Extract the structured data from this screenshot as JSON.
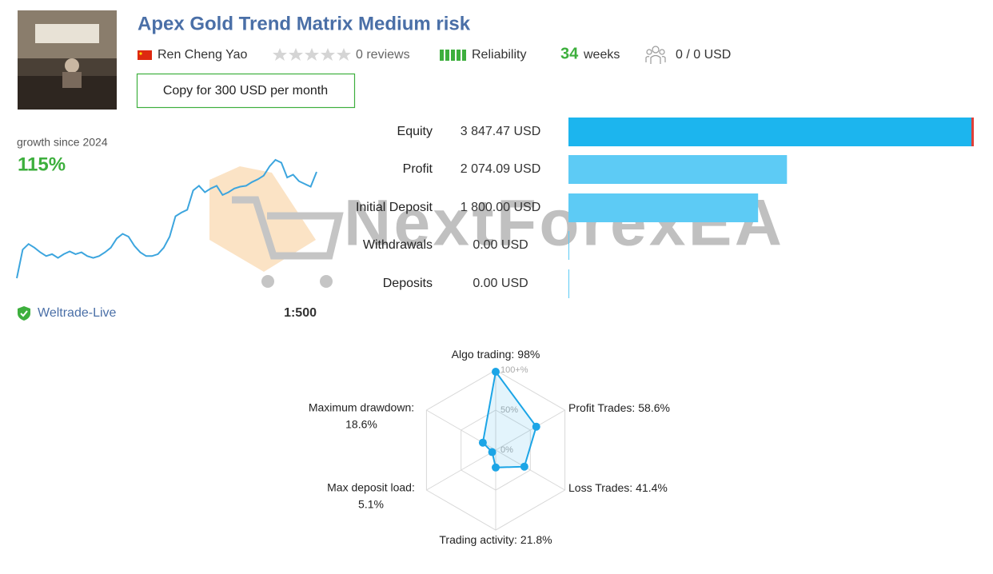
{
  "header": {
    "title": "Apex Gold Trend Matrix Medium risk",
    "author": "Ren Cheng Yao",
    "reviews": "0 reviews",
    "reliability": "Reliability",
    "weeks_value": "34",
    "weeks_label": "weeks",
    "subscribers": "0 / 0 USD",
    "copy_button": "Copy for 300 USD per month"
  },
  "growth": {
    "label": "growth since 2024",
    "value": "115%"
  },
  "account": {
    "broker": "Weltrade-Live",
    "leverage": "1:500"
  },
  "watermark": "NextForexEA",
  "chart_data": [
    {
      "type": "line",
      "color": "#3ca5de",
      "values": [
        0,
        31,
        37,
        33,
        28,
        24,
        26,
        22,
        26,
        29,
        26,
        28,
        24,
        22,
        24,
        28,
        33,
        43,
        48,
        45,
        35,
        28,
        24,
        24,
        26,
        33,
        45,
        67,
        71,
        74,
        95,
        100,
        93,
        97,
        100,
        90,
        93,
        97,
        99,
        100,
        104,
        107,
        111,
        121,
        128,
        125,
        109,
        112,
        105,
        102,
        99,
        115
      ]
    },
    {
      "type": "bar",
      "categories": [
        "Equity",
        "Profit",
        "Initial Deposit",
        "Withdrawals",
        "Deposits"
      ],
      "values": [
        3847.47,
        2074.09,
        1800.0,
        0,
        0
      ],
      "value_labels": [
        "3 847.47 USD",
        "2 074.09 USD",
        "1 800.00 USD",
        "0.00 USD",
        "0.00 USD"
      ],
      "colors": [
        "#1cb5ee",
        "#5dcbf5",
        "#5dcbf5",
        "#5dcbf5",
        "#5dcbf5"
      ]
    },
    {
      "type": "radar",
      "color": "#1ca5e6",
      "categories": [
        "Algo trading:",
        "Profit Trades:",
        "Loss Trades:",
        "Trading activity:",
        "Max deposit load:",
        "Maximum drawdown:"
      ],
      "values": [
        98,
        58.6,
        41.4,
        21.8,
        5.1,
        18.6
      ],
      "value_labels": [
        "98%",
        "58.6%",
        "41.4%",
        "21.8%",
        "5.1%",
        "18.6%"
      ],
      "rticks": [
        {
          "value": 0,
          "label": "0%"
        },
        {
          "value": 50,
          "label": "50%"
        },
        {
          "value": 100,
          "label": "100+%"
        }
      ]
    }
  ]
}
